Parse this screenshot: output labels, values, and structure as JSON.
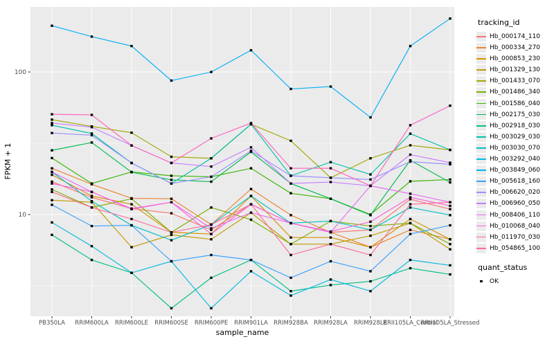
{
  "figure": {
    "background": "#FFFFFF"
  },
  "chart_data": {
    "type": "line",
    "title": "",
    "xlabel": "sample_name",
    "ylabel": "FPKM + 1",
    "y_scale": "log10",
    "y_ticks": [
      100,
      10
    ],
    "y_minor_ticks": [
      31.62,
      3.162
    ],
    "ylim_px_note": "log axis, decade = 206px",
    "panel_bg": "#EBEBEB",
    "grid_color": "#FFFFFF",
    "tick_color": "#333333",
    "tick_label_color": "#4D4D4D",
    "point_shape": "square",
    "point_color": "#000000",
    "categories": [
      "PB350LA",
      "RRIM600LA",
      "RRIM600LE",
      "RRIM600SE",
      "RRIM600PE",
      "RRIM901LA",
      "RRIM928BA",
      "RRIM928LA",
      "RRIM928LE",
      "RRII105LA_Control",
      "RRII105LA_Stressed"
    ],
    "legend": {
      "title": "tracking_id",
      "position": "right"
    },
    "legend2": {
      "title": "quant_status",
      "items": [
        {
          "label": "OK",
          "marker": "black-square"
        }
      ]
    },
    "series": [
      {
        "name": "Hb_000174_110",
        "color": "#F8766D",
        "values": [
          17.0,
          13.2,
          11.0,
          10.2,
          7.8,
          11.8,
          8.7,
          7.5,
          7.8,
          12.8,
          10.9
        ]
      },
      {
        "name": "Hb_000334_270",
        "color": "#EA8331",
        "values": [
          21.1,
          16.3,
          13.0,
          12.9,
          8.5,
          15.1,
          9.9,
          7.5,
          5.9,
          7.8,
          6.7
        ]
      },
      {
        "name": "Hb_000853_230",
        "color": "#D89000",
        "values": [
          19.0,
          13.5,
          11.8,
          7.5,
          7.3,
          13.5,
          6.9,
          6.9,
          5.9,
          9.3,
          6.7
        ]
      },
      {
        "name": "Hb_001329_130",
        "color": "#C09B00",
        "values": [
          12.6,
          12.2,
          5.9,
          7.2,
          6.7,
          10.3,
          6.2,
          6.2,
          7.1,
          8.7,
          5.7
        ]
      },
      {
        "name": "Hb_001433_070",
        "color": "#A3A500",
        "values": [
          46.3,
          41.5,
          37.5,
          25.4,
          24.8,
          43.0,
          32.9,
          18.1,
          24.8,
          30.6,
          28.4
        ]
      },
      {
        "name": "Hb_001486_340",
        "color": "#7CAE00",
        "values": [
          15.0,
          11.2,
          12.9,
          7.5,
          11.2,
          9.2,
          6.2,
          9.0,
          8.3,
          8.7,
          6.2
        ]
      },
      {
        "name": "Hb_001586_040",
        "color": "#39B600",
        "values": [
          24.9,
          16.5,
          19.9,
          18.7,
          18.4,
          21.1,
          14.1,
          12.9,
          10.0,
          17.1,
          17.6
        ]
      },
      {
        "name": "Hb_002175_030",
        "color": "#00BB4E",
        "values": [
          28.2,
          32.0,
          19.8,
          17.5,
          17.0,
          27.5,
          16.5,
          12.9,
          9.9,
          24.0,
          16.8
        ]
      },
      {
        "name": "Hb_002918_030",
        "color": "#00C087",
        "values": [
          7.2,
          4.8,
          3.9,
          2.2,
          3.6,
          4.8,
          2.9,
          3.2,
          3.4,
          4.2,
          3.8
        ]
      },
      {
        "name": "Hb_003029_030",
        "color": "#00C1AB",
        "values": [
          42.3,
          37.0,
          23.0,
          16.5,
          24.8,
          43.0,
          18.7,
          23.3,
          19.1,
          36.9,
          28.4
        ]
      },
      {
        "name": "Hb_003030_070",
        "color": "#00BFC4",
        "values": [
          19.9,
          12.4,
          8.4,
          6.6,
          8.5,
          13.5,
          8.7,
          9.0,
          7.8,
          11.2,
          9.9
        ]
      },
      {
        "name": "Hb_003292_040",
        "color": "#00BAE0",
        "values": [
          8.8,
          6.0,
          3.9,
          4.7,
          2.2,
          4.0,
          2.7,
          3.5,
          2.9,
          4.8,
          4.4
        ]
      },
      {
        "name": "Hb_003849_060",
        "color": "#00B0F6",
        "values": [
          211,
          177,
          152,
          87,
          100,
          142,
          76,
          79,
          48,
          152,
          237
        ]
      },
      {
        "name": "Hb_005618_160",
        "color": "#35A2FF",
        "values": [
          11.7,
          8.3,
          8.4,
          4.7,
          5.2,
          4.8,
          3.6,
          4.7,
          4.0,
          7.3,
          8.4
        ]
      },
      {
        "name": "Hb_006620_020",
        "color": "#9590FF",
        "values": [
          37.3,
          36.0,
          23.0,
          16.5,
          18.4,
          28.0,
          18.7,
          18.1,
          17.6,
          23.5,
          22.5
        ]
      },
      {
        "name": "Hb_006960_050",
        "color": "#C77CFF",
        "values": [
          43.8,
          41.0,
          30.5,
          23.0,
          21.7,
          29.6,
          16.5,
          16.9,
          15.9,
          26.3,
          23.1
        ]
      },
      {
        "name": "Hb_008406_110",
        "color": "#E76BF3",
        "values": [
          19.9,
          14.4,
          11.0,
          12.2,
          8.0,
          10.3,
          8.7,
          7.5,
          15.9,
          14.0,
          12.2
        ]
      },
      {
        "name": "Hb_010068_040",
        "color": "#FA62DB",
        "values": [
          16.5,
          14.4,
          10.9,
          12.2,
          7.3,
          11.8,
          8.7,
          7.6,
          8.9,
          13.2,
          11.5
        ]
      },
      {
        "name": "Hb_011970_030",
        "color": "#FF62BC",
        "values": [
          50.5,
          50.0,
          30.5,
          23.0,
          34.2,
          43.8,
          21.1,
          21.1,
          15.9,
          42.3,
          58.0
        ]
      },
      {
        "name": "Hb_054865_100",
        "color": "#FF6A98",
        "values": [
          14.4,
          11.2,
          9.3,
          7.5,
          8.5,
          11.8,
          5.2,
          6.2,
          5.2,
          11.8,
          12.2
        ]
      }
    ]
  }
}
